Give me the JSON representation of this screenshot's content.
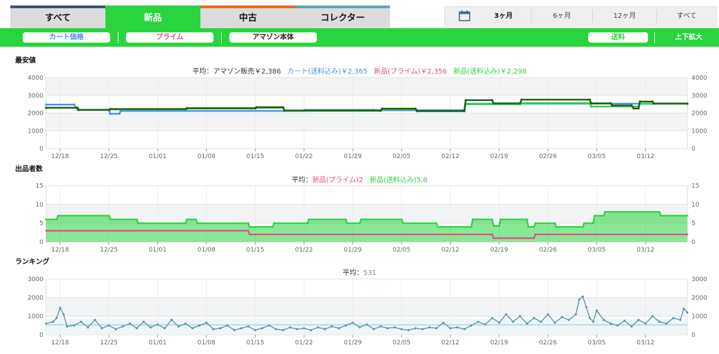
{
  "tabs": [
    {
      "label": "すべて",
      "color": "#3a5470",
      "bg": "#dcdcdc"
    },
    {
      "label": "新品",
      "color": "#2ad43e",
      "bg": "#2ad43e"
    },
    {
      "label": "中古",
      "color": "#ec6a1d",
      "bg": "#dcdcdc"
    },
    {
      "label": "コレクター",
      "color": "#5aa6b8",
      "bg": "#dcdcdc"
    }
  ],
  "range": {
    "items": [
      "3ヶ月",
      "6ヶ月",
      "12ヶ月",
      "すべて"
    ],
    "selected": 0
  },
  "filters": {
    "cart": {
      "label": "カート価格",
      "color": "#4a8fe7"
    },
    "prime": {
      "label": "プライム",
      "color": "#e64a8a"
    },
    "amazon": {
      "label": "アマゾン本体",
      "color": "#222222"
    },
    "shipping": {
      "label": "送料",
      "color": "#2ad43e"
    },
    "zoom": "上下拡大"
  },
  "sections": {
    "price": {
      "title": "最安値",
      "legend": [
        {
          "text": "平均：アマゾン販売￥2,386",
          "color": "#333333"
        },
        {
          "text": "カート(送料込み)￥2,365",
          "color": "#4a8fe7"
        },
        {
          "text": "新品(プライム)￥2,356",
          "color": "#e64a8a"
        },
        {
          "text": "新品(送料込み)￥2,298",
          "color": "#2ad43e"
        }
      ]
    },
    "sellers": {
      "title": "出品者数",
      "legend": [
        {
          "text": "平均：",
          "color": "#333333"
        },
        {
          "text": "新品(プライム)2",
          "color": "#e64a8a"
        },
        {
          "text": "新品(送料込み)5.8",
          "color": "#2ad43e"
        }
      ]
    },
    "rank": {
      "title": "ランキング",
      "legend": [
        {
          "text": "平均：",
          "color": "#333333"
        },
        {
          "text": "531",
          "color": "#5f97aa"
        }
      ]
    }
  },
  "chart_data": [
    {
      "type": "line",
      "title": "最安値",
      "x_ticks": [
        "12/18",
        "12/25",
        "01/01",
        "01/08",
        "01/15",
        "01/22",
        "01/29",
        "02/05",
        "02/12",
        "02/19",
        "02/26",
        "03/05",
        "03/12"
      ],
      "xlim": [
        "12/16",
        "03/17"
      ],
      "ylim": [
        0,
        4000
      ],
      "y_ticks": [
        0,
        1000,
        2000,
        3000,
        4000
      ],
      "grid": true,
      "series": [
        {
          "name": "カート(送料込み)",
          "color": "#4a8fe7",
          "points": [
            [
              0,
              2480
            ],
            [
              4,
              2480
            ],
            [
              4.5,
              2180
            ],
            [
              9,
              2180
            ],
            [
              9.2,
              1960
            ],
            [
              10.5,
              1960
            ],
            [
              10.7,
              2120
            ],
            [
              37,
              2120
            ],
            [
              37.2,
              2180
            ],
            [
              47,
              2180
            ],
            [
              47.2,
              2160
            ],
            [
              60,
              2160
            ],
            [
              60.2,
              2530
            ],
            [
              92,
              2530
            ]
          ]
        },
        {
          "name": "新品(送料込み)",
          "color": "#2ad43e",
          "points": [
            [
              0,
              2300
            ],
            [
              4.5,
              2300
            ],
            [
              4.7,
              2180
            ],
            [
              9,
              2180
            ],
            [
              9.2,
              2200
            ],
            [
              20,
              2200
            ],
            [
              20.2,
              2250
            ],
            [
              30,
              2250
            ],
            [
              30.2,
              2300
            ],
            [
              34,
              2300
            ],
            [
              34.2,
              2120
            ],
            [
              48,
              2120
            ],
            [
              48.2,
              2210
            ],
            [
              53,
              2210
            ],
            [
              53.2,
              2100
            ],
            [
              60,
              2100
            ],
            [
              60.2,
              2500
            ],
            [
              68,
              2500
            ],
            [
              68.2,
              2560
            ],
            [
              78,
              2560
            ],
            [
              78.2,
              2370
            ],
            [
              85,
              2370
            ],
            [
              85.2,
              2520
            ],
            [
              92,
              2520
            ]
          ]
        },
        {
          "name": "アマゾン販売",
          "color": "#1a5c1a",
          "points": [
            [
              0,
              2300
            ],
            [
              4.5,
              2300
            ],
            [
              4.7,
              2180
            ],
            [
              9,
              2180
            ],
            [
              9.2,
              2230
            ],
            [
              20,
              2230
            ],
            [
              20.2,
              2280
            ],
            [
              30,
              2280
            ],
            [
              30.2,
              2330
            ],
            [
              34,
              2330
            ],
            [
              34.2,
              2150
            ],
            [
              48,
              2150
            ],
            [
              48.2,
              2250
            ],
            [
              53,
              2250
            ],
            [
              53.2,
              2120
            ],
            [
              60,
              2120
            ],
            [
              60.2,
              2730
            ],
            [
              64,
              2730
            ],
            [
              64.2,
              2550
            ],
            [
              68,
              2550
            ],
            [
              68.2,
              2760
            ],
            [
              78,
              2760
            ],
            [
              78.2,
              2550
            ],
            [
              81,
              2550
            ],
            [
              81.2,
              2430
            ],
            [
              84,
              2430
            ],
            [
              84.3,
              2260
            ],
            [
              85,
              2260
            ],
            [
              85.2,
              2650
            ],
            [
              87,
              2650
            ],
            [
              87.2,
              2540
            ],
            [
              92,
              2540
            ]
          ]
        }
      ]
    },
    {
      "type": "area",
      "title": "出品者数",
      "x_ticks": [
        "12/18",
        "12/25",
        "01/01",
        "01/08",
        "01/15",
        "01/22",
        "01/29",
        "02/05",
        "02/12",
        "02/19",
        "02/26",
        "03/05",
        "03/12"
      ],
      "xlim": [
        "12/16",
        "03/17"
      ],
      "ylim": [
        0,
        15
      ],
      "y_ticks": [
        0,
        5,
        10,
        15
      ],
      "grid": true,
      "series": [
        {
          "name": "新品(送料込み)",
          "color": "#2ad43e",
          "points": [
            [
              0,
              6
            ],
            [
              1.5,
              6
            ],
            [
              1.7,
              7
            ],
            [
              9,
              7
            ],
            [
              9.2,
              6
            ],
            [
              13,
              6
            ],
            [
              13.2,
              5
            ],
            [
              20,
              5
            ],
            [
              20.2,
              6
            ],
            [
              21.5,
              6
            ],
            [
              21.7,
              5
            ],
            [
              29,
              5
            ],
            [
              29.2,
              4
            ],
            [
              32.5,
              4
            ],
            [
              32.7,
              5
            ],
            [
              37.5,
              5
            ],
            [
              37.7,
              6
            ],
            [
              43,
              6
            ],
            [
              43.2,
              5
            ],
            [
              45,
              5
            ],
            [
              45.2,
              6
            ],
            [
              51,
              6
            ],
            [
              51.2,
              5
            ],
            [
              56,
              5
            ],
            [
              56.2,
              4
            ],
            [
              61,
              4
            ],
            [
              61.2,
              6
            ],
            [
              64,
              6
            ],
            [
              64.2,
              4.3
            ],
            [
              65,
              4.3
            ],
            [
              65.2,
              6
            ],
            [
              69,
              6
            ],
            [
              69.2,
              4
            ],
            [
              70,
              4
            ],
            [
              70.2,
              5
            ],
            [
              73,
              5
            ],
            [
              73.2,
              4
            ],
            [
              77,
              4
            ],
            [
              77.2,
              5
            ],
            [
              78.5,
              5
            ],
            [
              78.7,
              7
            ],
            [
              80,
              7
            ],
            [
              80.2,
              8
            ],
            [
              88,
              8
            ],
            [
              88.2,
              7
            ],
            [
              92,
              7
            ]
          ]
        },
        {
          "name": "新品(プライム)",
          "color": "#e64a8a",
          "points": [
            [
              0,
              3
            ],
            [
              29,
              3
            ],
            [
              29.2,
              2
            ],
            [
              64,
              2
            ],
            [
              64.2,
              1
            ],
            [
              70,
              1
            ],
            [
              70.2,
              2
            ],
            [
              92,
              2
            ]
          ]
        }
      ]
    },
    {
      "type": "line",
      "title": "ランキング",
      "x_ticks": [
        "12/18",
        "12/25",
        "01/01",
        "01/08",
        "01/15",
        "01/22",
        "01/29",
        "02/05",
        "02/12",
        "02/19",
        "02/26",
        "03/05",
        "03/12"
      ],
      "xlim": [
        "12/16",
        "03/17"
      ],
      "ylim": [
        0,
        3000
      ],
      "y_ticks": [
        0,
        1000,
        2000,
        3000
      ],
      "grid": true,
      "average": 531,
      "series": [
        {
          "name": "ランキング",
          "color": "#5f97aa",
          "points": [
            [
              0,
              600
            ],
            [
              1,
              700
            ],
            [
              1.5,
              900
            ],
            [
              2,
              1450
            ],
            [
              2.5,
              1100
            ],
            [
              3,
              450
            ],
            [
              4,
              500
            ],
            [
              5,
              700
            ],
            [
              6,
              400
            ],
            [
              7,
              800
            ],
            [
              8,
              350
            ],
            [
              9,
              500
            ],
            [
              10,
              300
            ],
            [
              11,
              450
            ],
            [
              12,
              600
            ],
            [
              13,
              350
            ],
            [
              14,
              700
            ],
            [
              15,
              400
            ],
            [
              16,
              550
            ],
            [
              17,
              350
            ],
            [
              18,
              800
            ],
            [
              19,
              450
            ],
            [
              20,
              600
            ],
            [
              21,
              350
            ],
            [
              22,
              500
            ],
            [
              23,
              650
            ],
            [
              24,
              300
            ],
            [
              25,
              350
            ],
            [
              26,
              500
            ],
            [
              27,
              250
            ],
            [
              28,
              350
            ],
            [
              29,
              450
            ],
            [
              30,
              250
            ],
            [
              31,
              350
            ],
            [
              32,
              500
            ],
            [
              33,
              300
            ],
            [
              34,
              250
            ],
            [
              35,
              400
            ],
            [
              36,
              300
            ],
            [
              37,
              350
            ],
            [
              38,
              250
            ],
            [
              39,
              400
            ],
            [
              40,
              300
            ],
            [
              41,
              450
            ],
            [
              42,
              350
            ],
            [
              43,
              500
            ],
            [
              44,
              650
            ],
            [
              45,
              400
            ],
            [
              46,
              550
            ],
            [
              47,
              300
            ],
            [
              48,
              450
            ],
            [
              49,
              350
            ],
            [
              50,
              400
            ],
            [
              51,
              300
            ],
            [
              52,
              250
            ],
            [
              53,
              350
            ],
            [
              54,
              300
            ],
            [
              55,
              400
            ],
            [
              56,
              350
            ],
            [
              57,
              650
            ],
            [
              58,
              350
            ],
            [
              59,
              400
            ],
            [
              60,
              300
            ],
            [
              61,
              500
            ],
            [
              62,
              700
            ],
            [
              63,
              550
            ],
            [
              64,
              900
            ],
            [
              65,
              650
            ],
            [
              66,
              1100
            ],
            [
              67,
              700
            ],
            [
              68,
              1000
            ],
            [
              69,
              600
            ],
            [
              70,
              900
            ],
            [
              71,
              700
            ],
            [
              72,
              1100
            ],
            [
              73,
              650
            ],
            [
              74,
              950
            ],
            [
              75,
              800
            ],
            [
              76,
              1100
            ],
            [
              76.5,
              1900
            ],
            [
              77,
              2050
            ],
            [
              77.5,
              1500
            ],
            [
              78,
              900
            ],
            [
              78.5,
              700
            ],
            [
              79,
              1300
            ],
            [
              80,
              800
            ],
            [
              81,
              600
            ],
            [
              82,
              500
            ],
            [
              83,
              750
            ],
            [
              84,
              450
            ],
            [
              85,
              800
            ],
            [
              86,
              600
            ],
            [
              87,
              1000
            ],
            [
              88,
              700
            ],
            [
              89,
              600
            ],
            [
              90,
              900
            ],
            [
              91,
              800
            ],
            [
              91.5,
              1400
            ],
            [
              92,
              1200
            ]
          ]
        }
      ]
    }
  ]
}
